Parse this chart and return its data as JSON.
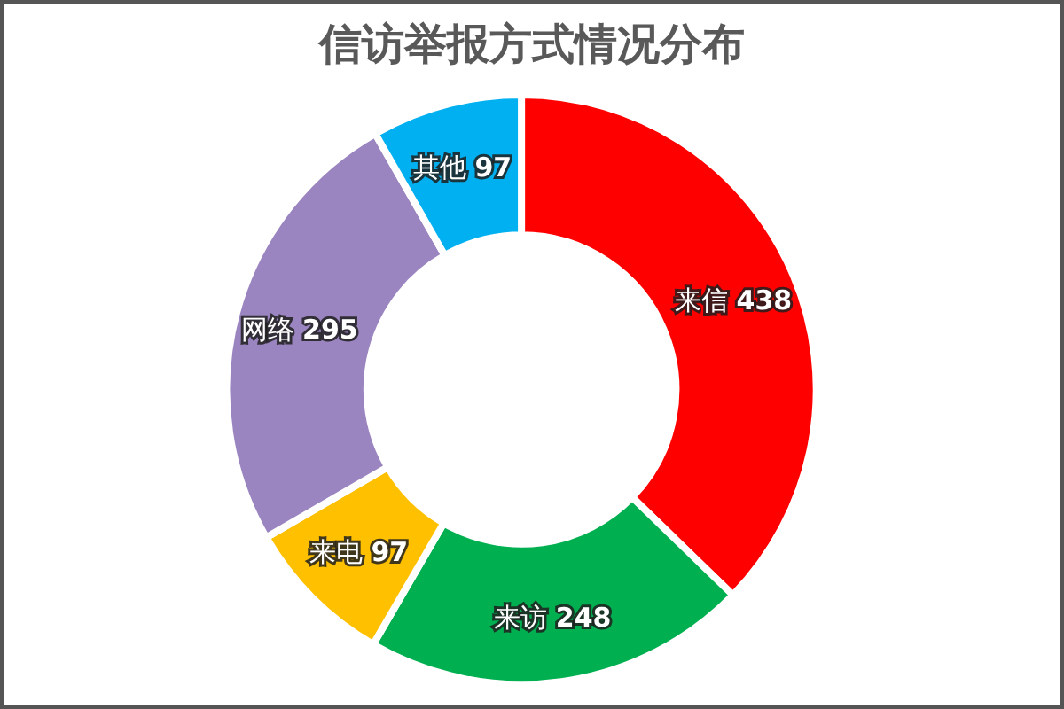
{
  "chart_data": {
    "type": "donut",
    "title": "信访举报方式情况分布",
    "categories": [
      "来信",
      "来访",
      "来电",
      "网络",
      "其他"
    ],
    "values": [
      438,
      248,
      97,
      295,
      97
    ],
    "colors": [
      "#ff0000",
      "#00b050",
      "#ffc000",
      "#9b85c0",
      "#00b0f0"
    ],
    "data_labels": true,
    "legend": false
  }
}
